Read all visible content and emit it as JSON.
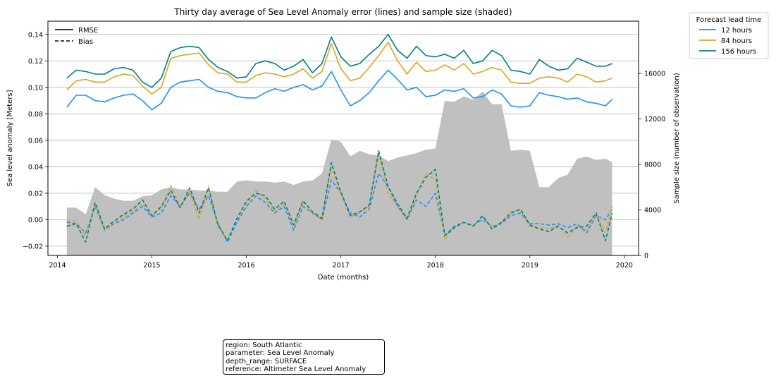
{
  "chart_data": {
    "type": "line",
    "title": "Thirty day average of Sea Level Anomaly error (lines) and sample size (shaded)",
    "xlabel": "Date (months)",
    "ylabel": "Sea level anomaly [Meters]",
    "y2label": "Sample size (number of observation)",
    "xlim": [
      2013.9,
      2020.15
    ],
    "ylim": [
      -0.027,
      0.15
    ],
    "y2lim": [
      0,
      20600
    ],
    "x_ticks": [
      "2014",
      "2015",
      "2016",
      "2017",
      "2018",
      "2019",
      "2020"
    ],
    "y_ticks": [
      "−0.02",
      "0.00",
      "0.02",
      "0.04",
      "0.06",
      "0.08",
      "0.10",
      "0.12",
      "0.14"
    ],
    "y2_ticks": [
      "0",
      "4000",
      "8000",
      "12000",
      "16000"
    ],
    "grid": "horizontal",
    "style_legend": {
      "position": "top-left",
      "entries": [
        {
          "label": "RMSE",
          "linestyle": "solid"
        },
        {
          "label": "Bias",
          "linestyle": "dashed"
        }
      ]
    },
    "legend": {
      "title": "Forecast lead time",
      "position": "outside-right",
      "entries": [
        "12 hours",
        "84 hours",
        "156 hours"
      ]
    },
    "colors": {
      "12 hours": "#1e90ff",
      "84 hours": "#daa520",
      "156 hours": "#008080",
      "sample_size": "#c0c0c0"
    },
    "x": [
      2014.1,
      2014.2,
      2014.3,
      2014.4,
      2014.5,
      2014.6,
      2014.7,
      2014.8,
      2014.9,
      2015.0,
      2015.1,
      2015.2,
      2015.3,
      2015.4,
      2015.5,
      2015.6,
      2015.7,
      2015.8,
      2015.9,
      2016.0,
      2016.1,
      2016.2,
      2016.3,
      2016.4,
      2016.5,
      2016.6,
      2016.7,
      2016.8,
      2016.9,
      2017.0,
      2017.1,
      2017.2,
      2017.3,
      2017.4,
      2017.5,
      2017.6,
      2017.7,
      2017.8,
      2017.9,
      2018.0,
      2018.1,
      2018.2,
      2018.3,
      2018.4,
      2018.5,
      2018.6,
      2018.7,
      2018.8,
      2018.9,
      2019.0,
      2019.1,
      2019.2,
      2019.3,
      2019.4,
      2019.5,
      2019.6,
      2019.7,
      2019.8,
      2019.87
    ],
    "series": [
      {
        "name": "12 hours",
        "metric": "RMSE",
        "values": [
          0.085,
          0.094,
          0.094,
          0.09,
          0.089,
          0.092,
          0.094,
          0.095,
          0.09,
          0.083,
          0.088,
          0.1,
          0.104,
          0.105,
          0.106,
          0.1,
          0.097,
          0.096,
          0.093,
          0.092,
          0.092,
          0.096,
          0.099,
          0.097,
          0.1,
          0.102,
          0.098,
          0.101,
          0.112,
          0.098,
          0.086,
          0.09,
          0.096,
          0.105,
          0.113,
          0.106,
          0.098,
          0.1,
          0.093,
          0.094,
          0.098,
          0.097,
          0.099,
          0.092,
          0.093,
          0.098,
          0.095,
          0.086,
          0.085,
          0.086,
          0.096,
          0.094,
          0.093,
          0.091,
          0.092,
          0.089,
          0.088,
          0.086,
          0.091
        ]
      },
      {
        "name": "84 hours",
        "metric": "RMSE",
        "values": [
          0.098,
          0.105,
          0.106,
          0.104,
          0.104,
          0.108,
          0.11,
          0.109,
          0.101,
          0.095,
          0.1,
          0.122,
          0.124,
          0.125,
          0.126,
          0.117,
          0.111,
          0.11,
          0.104,
          0.104,
          0.109,
          0.111,
          0.11,
          0.108,
          0.11,
          0.114,
          0.107,
          0.112,
          0.133,
          0.114,
          0.105,
          0.107,
          0.115,
          0.124,
          0.134,
          0.12,
          0.11,
          0.119,
          0.112,
          0.113,
          0.117,
          0.113,
          0.118,
          0.11,
          0.112,
          0.115,
          0.113,
          0.104,
          0.103,
          0.103,
          0.107,
          0.108,
          0.107,
          0.104,
          0.11,
          0.108,
          0.104,
          0.105,
          0.107
        ]
      },
      {
        "name": "156 hours",
        "metric": "RMSE",
        "values": [
          0.107,
          0.113,
          0.112,
          0.11,
          0.11,
          0.114,
          0.115,
          0.113,
          0.104,
          0.1,
          0.107,
          0.127,
          0.13,
          0.131,
          0.13,
          0.121,
          0.115,
          0.112,
          0.107,
          0.108,
          0.118,
          0.12,
          0.118,
          0.113,
          0.116,
          0.121,
          0.111,
          0.118,
          0.138,
          0.123,
          0.116,
          0.118,
          0.125,
          0.131,
          0.14,
          0.128,
          0.122,
          0.131,
          0.124,
          0.123,
          0.125,
          0.122,
          0.128,
          0.118,
          0.12,
          0.128,
          0.124,
          0.113,
          0.112,
          0.11,
          0.121,
          0.116,
          0.113,
          0.114,
          0.122,
          0.119,
          0.116,
          0.116,
          0.118
        ]
      },
      {
        "name": "12 hours",
        "metric": "Bias",
        "values": [
          -0.002,
          -0.003,
          -0.01,
          0.01,
          -0.008,
          -0.003,
          0.0,
          0.005,
          0.01,
          0.002,
          0.005,
          0.018,
          0.01,
          0.02,
          0.008,
          0.018,
          -0.003,
          -0.017,
          -0.002,
          0.01,
          0.018,
          0.013,
          0.005,
          0.01,
          -0.008,
          0.01,
          0.005,
          0.0,
          0.03,
          0.02,
          0.005,
          0.002,
          0.008,
          0.035,
          0.025,
          0.01,
          0.0,
          0.015,
          0.01,
          0.02,
          -0.012,
          -0.005,
          -0.002,
          -0.004,
          0.0,
          -0.005,
          -0.003,
          0.003,
          0.005,
          -0.003,
          -0.003,
          -0.004,
          -0.003,
          -0.006,
          -0.003,
          -0.01,
          0.003,
          0.0,
          0.008
        ]
      },
      {
        "name": "84 hours",
        "metric": "Bias",
        "values": [
          -0.001,
          -0.001,
          -0.012,
          0.012,
          -0.008,
          -0.002,
          0.002,
          0.006,
          0.012,
          0.003,
          0.008,
          0.026,
          0.01,
          0.022,
          0.0,
          0.025,
          -0.005,
          -0.015,
          0.0,
          0.012,
          0.022,
          0.016,
          0.006,
          0.012,
          -0.005,
          0.015,
          0.005,
          0.0,
          0.04,
          0.02,
          0.002,
          0.005,
          0.01,
          0.05,
          0.02,
          0.01,
          0.0,
          0.018,
          0.035,
          0.03,
          -0.015,
          -0.006,
          -0.002,
          -0.004,
          0.002,
          -0.006,
          -0.002,
          0.006,
          0.007,
          -0.005,
          -0.006,
          -0.007,
          -0.004,
          -0.013,
          -0.005,
          -0.008,
          0.004,
          -0.01,
          0.01
        ]
      },
      {
        "name": "156 hours",
        "metric": "Bias",
        "values": [
          -0.005,
          -0.003,
          -0.017,
          0.013,
          -0.007,
          -0.001,
          0.004,
          0.008,
          0.015,
          0.003,
          0.01,
          0.022,
          0.009,
          0.024,
          0.005,
          0.024,
          -0.004,
          -0.016,
          0.001,
          0.014,
          0.02,
          0.018,
          0.008,
          0.014,
          -0.004,
          0.014,
          0.006,
          0.001,
          0.043,
          0.021,
          0.003,
          0.006,
          0.011,
          0.052,
          0.025,
          0.012,
          0.001,
          0.02,
          0.032,
          0.038,
          -0.012,
          -0.006,
          -0.002,
          -0.005,
          0.003,
          -0.007,
          -0.002,
          0.005,
          0.008,
          -0.004,
          -0.007,
          -0.009,
          -0.005,
          -0.01,
          -0.006,
          -0.005,
          0.005,
          -0.016,
          0.005
        ]
      },
      {
        "name": "Sample size",
        "type": "area",
        "axis": "right",
        "values": [
          4200,
          4200,
          3600,
          6000,
          5300,
          5000,
          4800,
          4800,
          5200,
          5300,
          5800,
          6000,
          5800,
          5800,
          5700,
          5700,
          5600,
          5600,
          6500,
          6600,
          6500,
          6500,
          6400,
          6500,
          6200,
          6500,
          6600,
          7200,
          10200,
          10000,
          8700,
          9200,
          8900,
          8800,
          8300,
          8600,
          8800,
          9000,
          9300,
          9400,
          13600,
          13500,
          14000,
          13700,
          14400,
          13300,
          13300,
          9200,
          9300,
          9200,
          6000,
          6000,
          6800,
          7100,
          8500,
          8700,
          8400,
          8500,
          8200
        ]
      }
    ]
  },
  "info_box": {
    "line1": "region: South Atlantic",
    "line2": "parameter: Sea Level Anomaly",
    "line3": "depth_range: SURFACE",
    "line4": "reference: Altimeter Sea Level Anomaly"
  }
}
